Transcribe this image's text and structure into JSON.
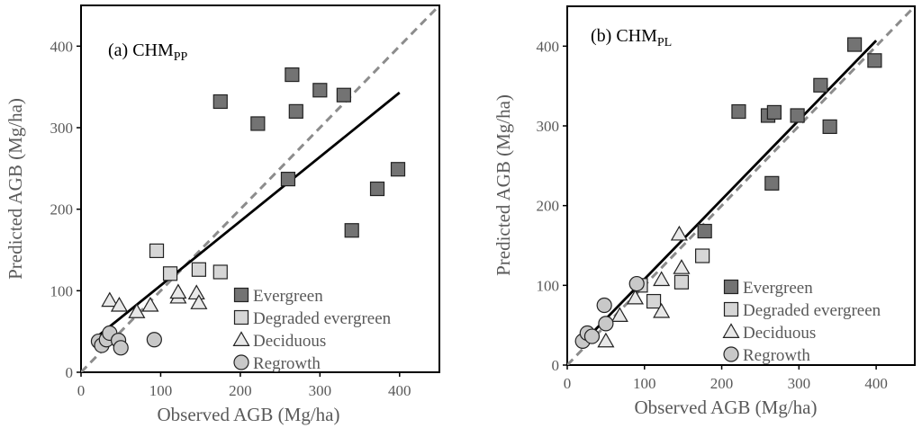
{
  "chart_data": [
    {
      "type": "scatter",
      "panel_label": "(a) CHM",
      "panel_subscript": "PP",
      "xlabel": "Observed AGB (Mg/ha)",
      "ylabel": "Predicted AGB (Mg/ha)",
      "xlim": [
        0,
        450
      ],
      "ylim": [
        0,
        450
      ],
      "xticks": [
        "0",
        "100",
        "200",
        "300",
        "400"
      ],
      "yticks": [
        "0",
        "100",
        "200",
        "300",
        "400"
      ],
      "grid": false,
      "legend_position": "bottom-right",
      "reference_line": {
        "style": "dashed",
        "color": "#8c8c8c",
        "points": [
          [
            0,
            0
          ],
          [
            450,
            450
          ]
        ]
      },
      "fit_line": {
        "color": "#000000",
        "points": [
          [
            22,
            45
          ],
          [
            400,
            343
          ]
        ]
      },
      "series": [
        {
          "name": "Evergreen",
          "marker": "square",
          "color": "#737373",
          "points": [
            [
              175,
              332
            ],
            [
              222,
              305
            ],
            [
              265,
              365
            ],
            [
              270,
              320
            ],
            [
              300,
              346
            ],
            [
              330,
              340
            ],
            [
              260,
              237
            ],
            [
              340,
              174
            ],
            [
              372,
              225
            ],
            [
              398,
              249
            ]
          ]
        },
        {
          "name": "Degraded evergreen",
          "marker": "square",
          "color": "#d6d6d6",
          "points": [
            [
              95,
              149
            ],
            [
              112,
              121
            ],
            [
              148,
              126
            ],
            [
              175,
              123
            ]
          ]
        },
        {
          "name": "Deciduous",
          "marker": "triangle",
          "color": "#e8e8e8",
          "points": [
            [
              36,
              88
            ],
            [
              48,
              82
            ],
            [
              70,
              74
            ],
            [
              87,
              82
            ],
            [
              122,
              92
            ],
            [
              122,
              98
            ],
            [
              145,
              97
            ],
            [
              148,
              85
            ]
          ]
        },
        {
          "name": "Regrowth",
          "marker": "circle",
          "color": "#c8c8c8",
          "points": [
            [
              22,
              38
            ],
            [
              26,
              33
            ],
            [
              32,
              40
            ],
            [
              36,
              48
            ],
            [
              47,
              39
            ],
            [
              50,
              30
            ],
            [
              92,
              40
            ]
          ]
        }
      ]
    },
    {
      "type": "scatter",
      "panel_label": "(b) CHM",
      "panel_subscript": "PL",
      "xlabel": "Observed AGB (Mg/ha)",
      "ylabel": "Predicted AGB (Mg/ha)",
      "xlim": [
        0,
        450
      ],
      "ylim": [
        0,
        450
      ],
      "xticks": [
        "0",
        "100",
        "200",
        "300",
        "400"
      ],
      "yticks": [
        "0",
        "100",
        "200",
        "300",
        "400"
      ],
      "grid": false,
      "legend_position": "bottom-right",
      "reference_line": {
        "style": "dashed",
        "color": "#8c8c8c",
        "points": [
          [
            0,
            0
          ],
          [
            450,
            450
          ]
        ]
      },
      "fit_line": {
        "color": "#000000",
        "points": [
          [
            22,
            30
          ],
          [
            400,
            407
          ]
        ]
      },
      "series": [
        {
          "name": "Evergreen",
          "marker": "square",
          "color": "#737373",
          "points": [
            [
              372,
              402
            ],
            [
              398,
              382
            ],
            [
              328,
              351
            ],
            [
              222,
              318
            ],
            [
              260,
              313
            ],
            [
              268,
              317
            ],
            [
              298,
              313
            ],
            [
              340,
              299
            ],
            [
              265,
              228
            ],
            [
              178,
              168
            ]
          ]
        },
        {
          "name": "Degraded evergreen",
          "marker": "square",
          "color": "#d6d6d6",
          "points": [
            [
              175,
              137
            ],
            [
              148,
              104
            ],
            [
              112,
              80
            ],
            [
              95,
              100
            ]
          ]
        },
        {
          "name": "Deciduous",
          "marker": "triangle",
          "color": "#e8e8e8",
          "points": [
            [
              145,
              164
            ],
            [
              148,
              122
            ],
            [
              122,
              107
            ],
            [
              88,
              84
            ],
            [
              68,
              62
            ],
            [
              50,
              30
            ],
            [
              122,
              67
            ]
          ]
        },
        {
          "name": "Regrowth",
          "marker": "circle",
          "color": "#c8c8c8",
          "points": [
            [
              20,
              30
            ],
            [
              26,
              40
            ],
            [
              32,
              36
            ],
            [
              48,
              75
            ],
            [
              50,
              52
            ],
            [
              90,
              102
            ]
          ]
        }
      ]
    }
  ]
}
